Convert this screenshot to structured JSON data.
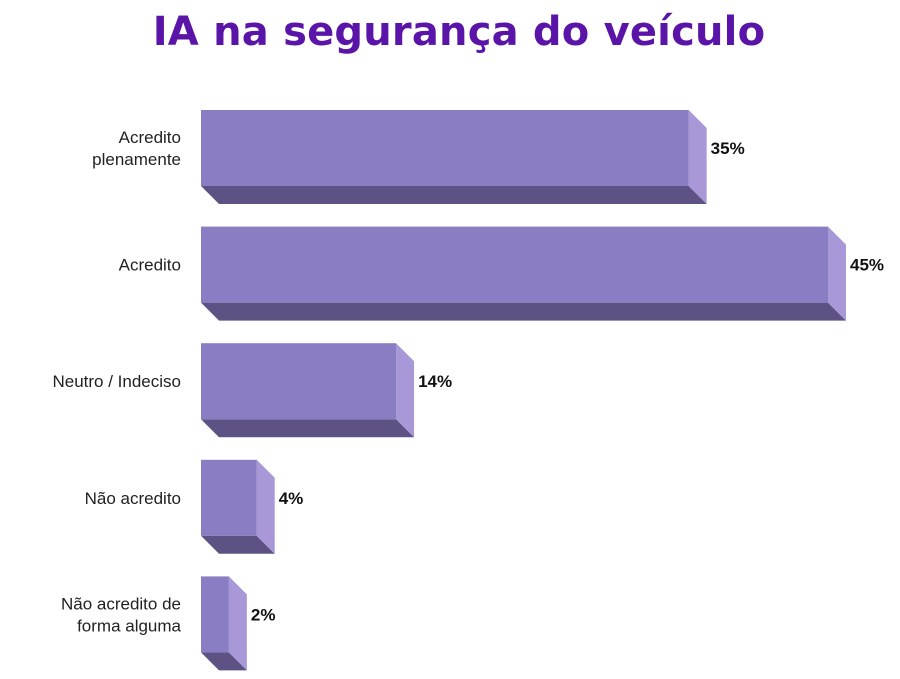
{
  "chart_data": {
    "type": "bar",
    "orientation": "horizontal",
    "title": "IA na segurança do veículo",
    "categories": [
      [
        "Acredito",
        "plenamente"
      ],
      [
        "Acredito"
      ],
      [
        "Neutro / Indeciso"
      ],
      [
        "Não acredito"
      ],
      [
        "Não acredito de",
        "forma alguma"
      ]
    ],
    "values": [
      35,
      45,
      14,
      4,
      2
    ],
    "value_labels": [
      "35%",
      "45%",
      "14%",
      "4%",
      "2%"
    ],
    "unit": "%",
    "xlim": [
      0,
      45
    ],
    "grid": false,
    "legend": "none",
    "colors": {
      "front": "#8b7dc3",
      "side": "#a898d8",
      "bottom": "#5d5283",
      "title": "#5a14a8"
    }
  }
}
